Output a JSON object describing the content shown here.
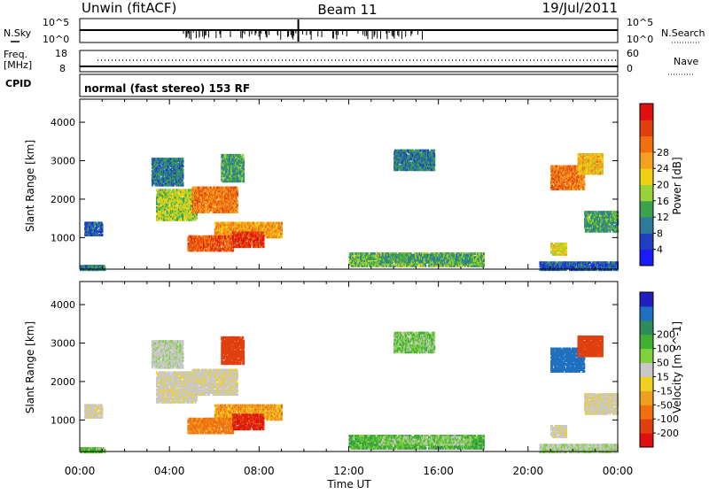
{
  "header": {
    "station": "Unwin (fitACF)",
    "beam": "Beam 11",
    "date": "19/Jul/2011"
  },
  "noise_panel": {
    "left_label": "N.Sky",
    "right_label": "N.Search",
    "left_ticks": [
      "10^5",
      "10^0"
    ],
    "right_ticks": [
      "10^5",
      "10^0"
    ]
  },
  "freq_panel": {
    "left_label_1": "Freq.",
    "left_label_2": "[MHz]",
    "right_label": "Nave",
    "left_ticks": [
      "18",
      "8"
    ],
    "right_ticks": [
      "60",
      "0"
    ]
  },
  "cpid_panel": {
    "label": "CPID",
    "text": "normal (fast stereo) 153 RF"
  },
  "axes": {
    "ylabel": "Slant Range [km]",
    "xlabel": "Time UT",
    "yticks": [
      "1000",
      "2000",
      "3000",
      "4000"
    ],
    "xticks": [
      "00:00",
      "04:00",
      "08:00",
      "12:00",
      "16:00",
      "20:00",
      "00:00"
    ]
  },
  "colorbars": {
    "power": {
      "label": "Power [dB]",
      "ticks": [
        "4",
        "8",
        "12",
        "16",
        "20",
        "24",
        "28"
      ],
      "colors": [
        "#1a1aff",
        "#1e3fbf",
        "#2e7a9a",
        "#3aa24a",
        "#9ad23a",
        "#f0d010",
        "#f5a020",
        "#f07010",
        "#e04010",
        "#e01010"
      ]
    },
    "velocity": {
      "label": "Velocity [m s^-1]",
      "ticks": [
        "200",
        "100",
        "50",
        "15",
        "-15",
        "-50",
        "-100",
        "-200"
      ],
      "colors": [
        "#2020c0",
        "#2070c0",
        "#2e8c5a",
        "#40b030",
        "#80d040",
        "#c8c8c8",
        "#f0d020",
        "#f0a020",
        "#f07010",
        "#e04010",
        "#e01010"
      ]
    }
  },
  "chart_data": {
    "type": "heatmap",
    "panels": [
      "Power [dB]",
      "Velocity [m s^-1]"
    ],
    "x_range_hours": [
      0,
      24
    ],
    "y_range_km": [
      180,
      4600
    ],
    "regions": [
      {
        "t0": 0.2,
        "t1": 1.0,
        "r0": 1100,
        "r1": 1450,
        "power": 6,
        "velocity": -5
      },
      {
        "t0": 0.0,
        "t1": 1.1,
        "r0": 200,
        "r1": 320,
        "power": 8,
        "velocity": 30
      },
      {
        "t0": 3.4,
        "t1": 5.2,
        "r0": 1500,
        "r1": 2300,
        "power": 14,
        "velocity": -5
      },
      {
        "t0": 5.0,
        "t1": 7.0,
        "r0": 1700,
        "r1": 2350,
        "power": 22,
        "velocity": -5
      },
      {
        "t0": 6.0,
        "t1": 9.0,
        "r0": 1050,
        "r1": 1450,
        "power": 20,
        "velocity": -40
      },
      {
        "t0": 4.8,
        "t1": 6.8,
        "r0": 700,
        "r1": 1100,
        "power": 24,
        "velocity": -60
      },
      {
        "t0": 6.8,
        "t1": 8.2,
        "r0": 800,
        "r1": 1200,
        "power": 26,
        "velocity": -200
      },
      {
        "t0": 3.2,
        "t1": 4.6,
        "r0": 2400,
        "r1": 3100,
        "power": 8,
        "velocity": 5
      },
      {
        "t0": 6.3,
        "t1": 7.3,
        "r0": 2500,
        "r1": 3200,
        "power": 10,
        "velocity": -150
      },
      {
        "t0": 14.0,
        "t1": 15.8,
        "r0": 2800,
        "r1": 3300,
        "power": 8,
        "velocity": 25
      },
      {
        "t0": 12.0,
        "t1": 18.0,
        "r0": 300,
        "r1": 650,
        "power": 12,
        "velocity": 40
      },
      {
        "t0": 13.3,
        "t1": 17.5,
        "r0": 400,
        "r1": 600,
        "power": 10,
        "velocity": 20
      },
      {
        "t0": 21.0,
        "t1": 22.5,
        "r0": 2300,
        "r1": 2900,
        "power": 22,
        "velocity": 150
      },
      {
        "t0": 22.2,
        "t1": 23.3,
        "r0": 2700,
        "r1": 3200,
        "power": 18,
        "velocity": -150
      },
      {
        "t0": 22.5,
        "t1": 24.0,
        "r0": 1200,
        "r1": 1700,
        "power": 10,
        "velocity": -5
      },
      {
        "t0": 21.0,
        "t1": 21.7,
        "r0": 600,
        "r1": 900,
        "power": 16,
        "velocity": -5
      },
      {
        "t0": 20.5,
        "t1": 24.0,
        "r0": 200,
        "r1": 400,
        "power": 6,
        "velocity": 10
      }
    ]
  }
}
